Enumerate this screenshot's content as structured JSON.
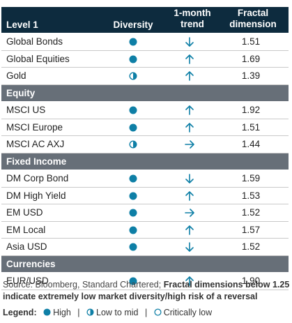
{
  "colors": {
    "header_bg": "#0d2b3e",
    "section_bg": "#676f78",
    "accent": "#0e7fa6"
  },
  "header": {
    "level": "Level 1",
    "diversity": "Diversity",
    "trend_line1": "1-month",
    "trend_line2": "trend",
    "fractal_line1": "Fractal",
    "fractal_line2": "dimension"
  },
  "rows": [
    {
      "type": "item",
      "name": "Global Bonds",
      "diversity": "high",
      "trend": "down",
      "value": "1.51"
    },
    {
      "type": "item",
      "name": "Global Equities",
      "diversity": "high",
      "trend": "up",
      "value": "1.69"
    },
    {
      "type": "item",
      "name": "Gold",
      "diversity": "low-to-mid",
      "trend": "up",
      "value": "1.39"
    },
    {
      "type": "section",
      "name": "Equity"
    },
    {
      "type": "item",
      "name": "MSCI US",
      "diversity": "high",
      "trend": "up",
      "value": "1.92"
    },
    {
      "type": "item",
      "name": "MSCI Europe",
      "diversity": "high",
      "trend": "up",
      "value": "1.51"
    },
    {
      "type": "item",
      "name": "MSCI AC AXJ",
      "diversity": "low-to-mid",
      "trend": "right",
      "value": "1.44"
    },
    {
      "type": "section",
      "name": "Fixed Income"
    },
    {
      "type": "item",
      "name": "DM Corp Bond",
      "diversity": "high",
      "trend": "down",
      "value": "1.59"
    },
    {
      "type": "item",
      "name": "DM High Yield",
      "diversity": "high",
      "trend": "up",
      "value": "1.53"
    },
    {
      "type": "item",
      "name": "EM USD",
      "diversity": "high",
      "trend": "right",
      "value": "1.52"
    },
    {
      "type": "item",
      "name": "EM Local",
      "diversity": "high",
      "trend": "up",
      "value": "1.57"
    },
    {
      "type": "item",
      "name": "Asia USD",
      "diversity": "high",
      "trend": "down",
      "value": "1.52"
    },
    {
      "type": "section",
      "name": "Currencies"
    },
    {
      "type": "item",
      "name": "EUR/USD",
      "diversity": "high",
      "trend": "up",
      "value": "1.90"
    }
  ],
  "footer": {
    "source": "Source: Bloomberg, Standard Chartered;",
    "note": "Fractal dimensions below 1.25 indicate extremely low market diversity/high risk of a reversal"
  },
  "legend": {
    "label": "Legend:",
    "high": "High",
    "low_to_mid": "Low to mid",
    "critically_low": "Critically low"
  }
}
